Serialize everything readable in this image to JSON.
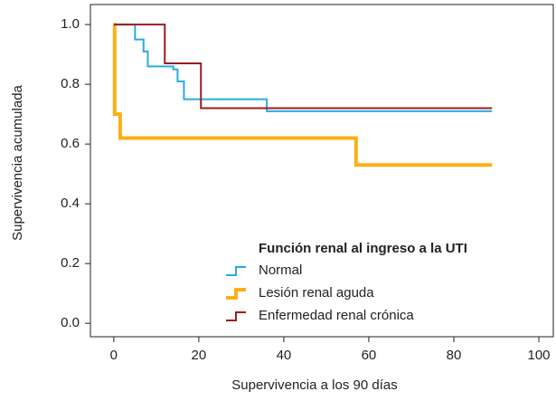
{
  "chart_data": {
    "type": "step",
    "xlabel": "Supervivencia a los 90 días",
    "ylabel": "Supervivencia acumulada",
    "legend_title": "Función renal al ingreso a la UTI",
    "legend_position": "lower right",
    "xlim": [
      -5.5,
      103.4
    ],
    "ylim": [
      -0.045,
      1.067
    ],
    "xticks": [
      0,
      20,
      40,
      60,
      80,
      100
    ],
    "yticks": [
      {
        "value": 0,
        "label": "0.0"
      },
      0.2,
      0.4,
      0.6,
      0.8,
      {
        "value": 1,
        "label": "1.0"
      }
    ],
    "series": [
      {
        "name": "Normal",
        "color": "#29abe2",
        "width": 2,
        "x": [
          0,
          5,
          7,
          8,
          14,
          15,
          16.5,
          36,
          89
        ],
        "values": [
          1.0,
          0.95,
          0.91,
          0.86,
          0.85,
          0.81,
          0.75,
          0.71,
          0.71
        ]
      },
      {
        "name": "Lesión renal aguda",
        "color": "#fbb016",
        "width": 4,
        "x": [
          0,
          0.2,
          1.5,
          57,
          89
        ],
        "values": [
          1.0,
          0.7,
          0.62,
          0.53,
          0.53
        ]
      },
      {
        "name": "Enfermedad renal crónica",
        "color": "#9b1c20",
        "width": 2,
        "x": [
          0,
          12,
          20.5,
          89
        ],
        "values": [
          1.0,
          0.87,
          0.72,
          0.72
        ]
      }
    ]
  }
}
